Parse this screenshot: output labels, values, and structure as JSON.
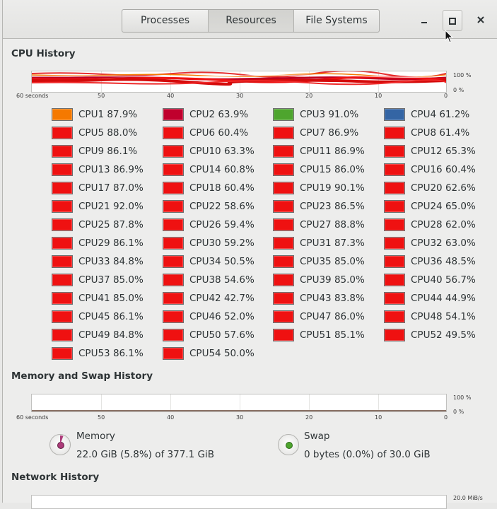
{
  "tabs": [
    {
      "label": "Processes",
      "active": false
    },
    {
      "label": "Resources",
      "active": true
    },
    {
      "label": "File Systems",
      "active": false
    }
  ],
  "window_controls": {
    "minimize": "–",
    "maximize": "◻",
    "close": "×"
  },
  "cpu_section": {
    "title": "CPU History",
    "y_labels": [
      "100 %",
      "0 %"
    ],
    "x_labels": [
      "60 seconds",
      "50",
      "40",
      "30",
      "20",
      "10",
      "0"
    ],
    "cpus": [
      {
        "label": "CPU1",
        "value": "87.9%",
        "color": "#f57900"
      },
      {
        "label": "CPU2",
        "value": "63.9%",
        "color": "#c0002d"
      },
      {
        "label": "CPU3",
        "value": "91.0%",
        "color": "#4ea52e"
      },
      {
        "label": "CPU4",
        "value": "61.2%",
        "color": "#3465a4"
      },
      {
        "label": "CPU5",
        "value": "88.0%",
        "color": "#ef1111"
      },
      {
        "label": "CPU6",
        "value": "60.4%",
        "color": "#ef1111"
      },
      {
        "label": "CPU7",
        "value": "86.9%",
        "color": "#ef1111"
      },
      {
        "label": "CPU8",
        "value": "61.4%",
        "color": "#ef1111"
      },
      {
        "label": "CPU9",
        "value": "86.1%",
        "color": "#ef1111"
      },
      {
        "label": "CPU10",
        "value": "63.3%",
        "color": "#ef1111"
      },
      {
        "label": "CPU11",
        "value": "86.9%",
        "color": "#ef1111"
      },
      {
        "label": "CPU12",
        "value": "65.3%",
        "color": "#ef1111"
      },
      {
        "label": "CPU13",
        "value": "86.9%",
        "color": "#ef1111"
      },
      {
        "label": "CPU14",
        "value": "60.8%",
        "color": "#ef1111"
      },
      {
        "label": "CPU15",
        "value": "86.0%",
        "color": "#ef1111"
      },
      {
        "label": "CPU16",
        "value": "60.4%",
        "color": "#ef1111"
      },
      {
        "label": "CPU17",
        "value": "87.0%",
        "color": "#ef1111"
      },
      {
        "label": "CPU18",
        "value": "60.4%",
        "color": "#ef1111"
      },
      {
        "label": "CPU19",
        "value": "90.1%",
        "color": "#ef1111"
      },
      {
        "label": "CPU20",
        "value": "62.6%",
        "color": "#ef1111"
      },
      {
        "label": "CPU21",
        "value": "92.0%",
        "color": "#ef1111"
      },
      {
        "label": "CPU22",
        "value": "58.6%",
        "color": "#ef1111"
      },
      {
        "label": "CPU23",
        "value": "86.5%",
        "color": "#ef1111"
      },
      {
        "label": "CPU24",
        "value": "65.0%",
        "color": "#ef1111"
      },
      {
        "label": "CPU25",
        "value": "87.8%",
        "color": "#ef1111"
      },
      {
        "label": "CPU26",
        "value": "59.4%",
        "color": "#ef1111"
      },
      {
        "label": "CPU27",
        "value": "88.8%",
        "color": "#ef1111"
      },
      {
        "label": "CPU28",
        "value": "62.0%",
        "color": "#ef1111"
      },
      {
        "label": "CPU29",
        "value": "86.1%",
        "color": "#ef1111"
      },
      {
        "label": "CPU30",
        "value": "59.2%",
        "color": "#ef1111"
      },
      {
        "label": "CPU31",
        "value": "87.3%",
        "color": "#ef1111"
      },
      {
        "label": "CPU32",
        "value": "63.0%",
        "color": "#ef1111"
      },
      {
        "label": "CPU33",
        "value": "84.8%",
        "color": "#ef1111"
      },
      {
        "label": "CPU34",
        "value": "50.5%",
        "color": "#ef1111"
      },
      {
        "label": "CPU35",
        "value": "85.0%",
        "color": "#ef1111"
      },
      {
        "label": "CPU36",
        "value": "48.5%",
        "color": "#ef1111"
      },
      {
        "label": "CPU37",
        "value": "85.0%",
        "color": "#ef1111"
      },
      {
        "label": "CPU38",
        "value": "54.6%",
        "color": "#ef1111"
      },
      {
        "label": "CPU39",
        "value": "85.0%",
        "color": "#ef1111"
      },
      {
        "label": "CPU40",
        "value": "56.7%",
        "color": "#ef1111"
      },
      {
        "label": "CPU41",
        "value": "85.0%",
        "color": "#ef1111"
      },
      {
        "label": "CPU42",
        "value": "42.7%",
        "color": "#ef1111"
      },
      {
        "label": "CPU43",
        "value": "83.8%",
        "color": "#ef1111"
      },
      {
        "label": "CPU44",
        "value": "44.9%",
        "color": "#ef1111"
      },
      {
        "label": "CPU45",
        "value": "86.1%",
        "color": "#ef1111"
      },
      {
        "label": "CPU46",
        "value": "52.0%",
        "color": "#ef1111"
      },
      {
        "label": "CPU47",
        "value": "86.0%",
        "color": "#ef1111"
      },
      {
        "label": "CPU48",
        "value": "54.1%",
        "color": "#ef1111"
      },
      {
        "label": "CPU49",
        "value": "84.8%",
        "color": "#ef1111"
      },
      {
        "label": "CPU50",
        "value": "57.6%",
        "color": "#ef1111"
      },
      {
        "label": "CPU51",
        "value": "85.1%",
        "color": "#ef1111"
      },
      {
        "label": "CPU52",
        "value": "49.5%",
        "color": "#ef1111"
      },
      {
        "label": "CPU53",
        "value": "86.1%",
        "color": "#ef1111"
      },
      {
        "label": "CPU54",
        "value": "50.0%",
        "color": "#ef1111"
      }
    ]
  },
  "memory_section": {
    "title": "Memory and Swap History",
    "y_labels": [
      "100 %",
      "0 %"
    ],
    "x_labels": [
      "60 seconds",
      "50",
      "40",
      "30",
      "20",
      "10",
      "0"
    ],
    "memory": {
      "title": "Memory",
      "value": "22.0 GiB (5.8%) of 377.1 GiB",
      "fraction": 0.058,
      "color": "#ad3b7a"
    },
    "swap": {
      "title": "Swap",
      "value": "0 bytes (0.0%) of 30.0 GiB",
      "fraction": 0.0,
      "color": "#4ea52e"
    }
  },
  "network_section": {
    "title": "Network History",
    "y_labels": [
      "20.0 MiB/s"
    ]
  }
}
